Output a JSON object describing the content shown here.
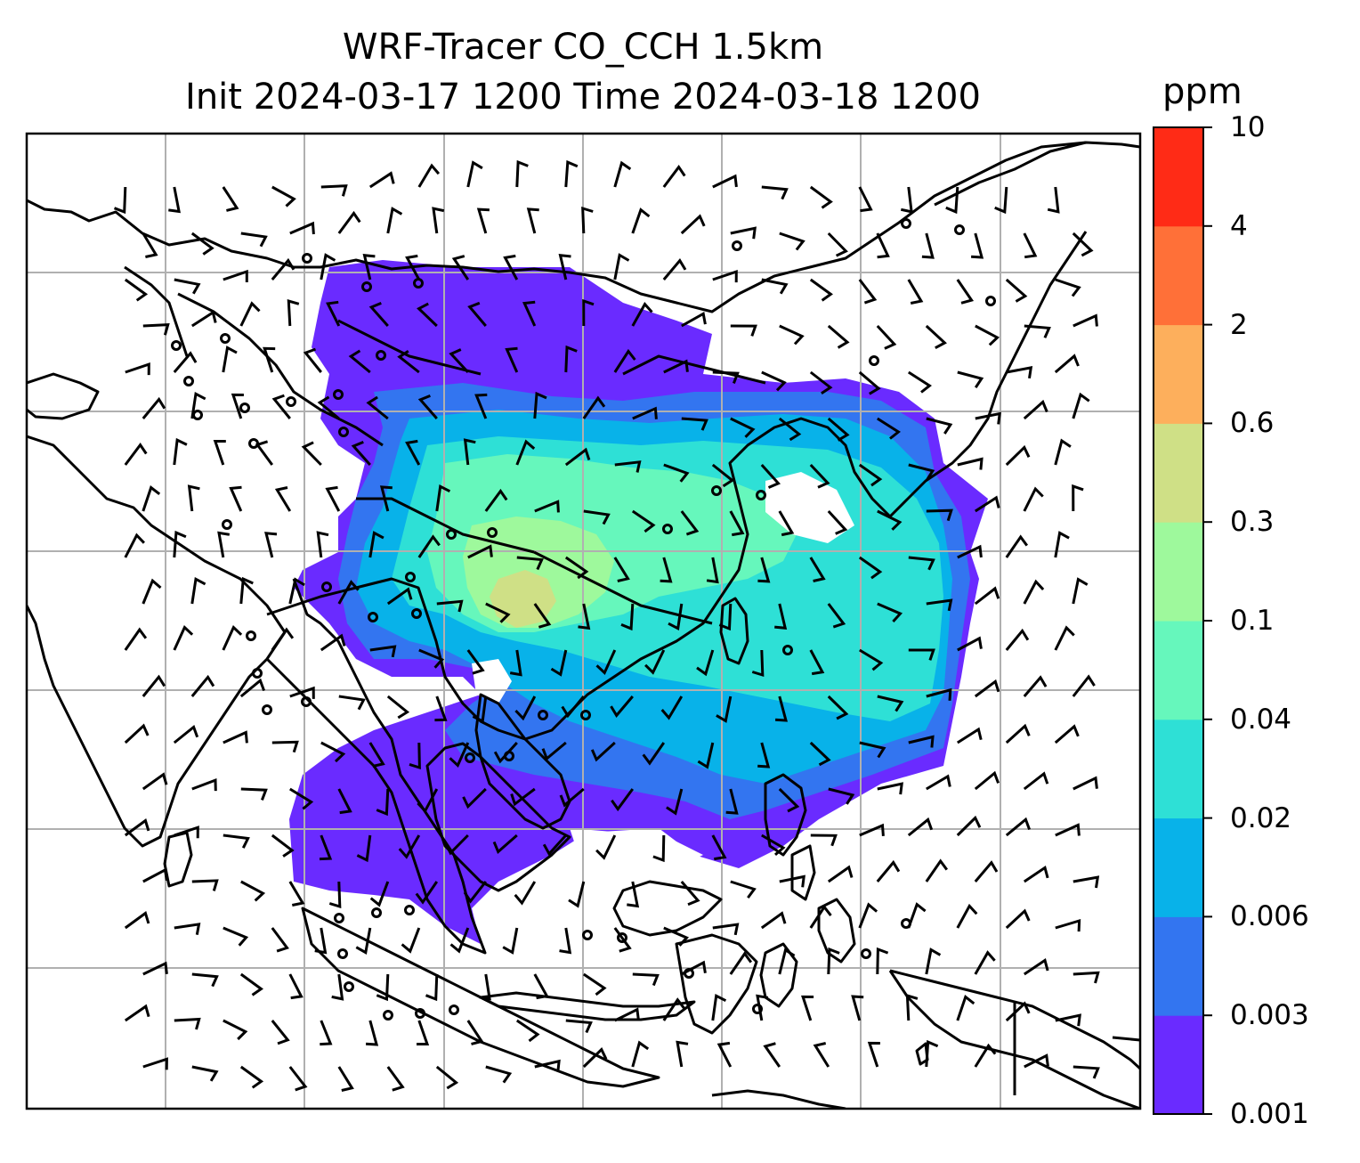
{
  "title": {
    "line1": "WRF-Tracer CO_CCH 1.5km",
    "line2": "Init 2024-03-17 1200 Time 2024-03-18 1200"
  },
  "colorbar": {
    "unit": "ppm",
    "ticks": [
      "10",
      "4",
      "2",
      "0.6",
      "0.3",
      "0.1",
      "0.04",
      "0.02",
      "0.006",
      "0.003",
      "0.001"
    ],
    "colors": [
      "#6a2bff",
      "#3375f0",
      "#08b2e9",
      "#2ee0d6",
      "#66f7bc",
      "#9ef99c",
      "#cfe086",
      "#fdaf5c",
      "#ff7038",
      "#ff2b16"
    ]
  },
  "map": {
    "background": "#ffffff",
    "grid_color": "#b0b0b0",
    "coastline_color": "#000000",
    "wind_barb_color": "#000000"
  }
}
